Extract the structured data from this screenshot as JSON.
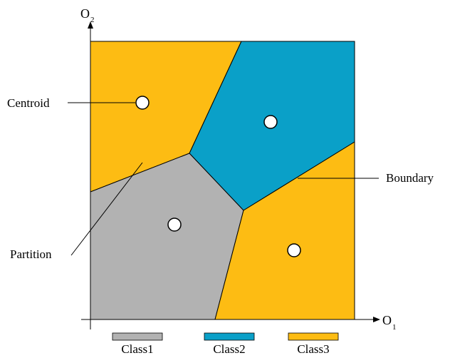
{
  "axes": {
    "x_label": "O",
    "x_subscript": "1",
    "y_label": "O",
    "y_subscript": "2"
  },
  "annotations": {
    "centroid": "Centroid",
    "boundary": "Boundary",
    "partition": "Partition"
  },
  "legend": [
    {
      "label": "Class1",
      "color": "#b2b2b2"
    },
    {
      "label": "Class2",
      "color": "#0aa0c8"
    },
    {
      "label": "Class3",
      "color": "#fdbc13"
    }
  ],
  "regions": [
    {
      "name": "top-left",
      "class": "Class3",
      "color": "#fdbc13"
    },
    {
      "name": "top-right",
      "class": "Class2",
      "color": "#0aa0c8"
    },
    {
      "name": "bottom-left",
      "class": "Class1",
      "color": "#b2b2b2"
    },
    {
      "name": "bottom-right",
      "class": "Class3",
      "color": "#fdbc13"
    }
  ]
}
